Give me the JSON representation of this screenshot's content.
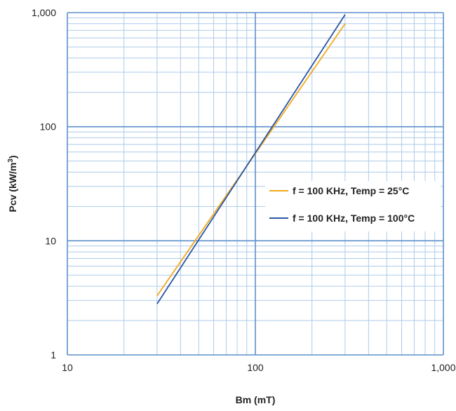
{
  "chart_data": {
    "type": "line",
    "title": "",
    "xlabel": "Bm (mT)",
    "ylabel_main": "Pcv (kW/m",
    "ylabel_sup": "3",
    "ylabel_close": ")",
    "x_scale": "log",
    "y_scale": "log",
    "xlim": [
      10,
      1000
    ],
    "ylim": [
      1,
      1000
    ],
    "x_ticks": [
      {
        "value": 10,
        "label": "10"
      },
      {
        "value": 100,
        "label": "100"
      },
      {
        "value": 1000,
        "label": "1,000"
      }
    ],
    "y_ticks": [
      {
        "value": 1,
        "label": "1"
      },
      {
        "value": 10,
        "label": "10"
      },
      {
        "value": 100,
        "label": "100"
      },
      {
        "value": 1000,
        "label": "1,000"
      }
    ],
    "grid": true,
    "legend_position": "center-right",
    "series": [
      {
        "name": "f = 100 KHz, Temp = 25°C",
        "color": "#F0AA1E",
        "x": [
          30,
          300
        ],
        "y": [
          3.3,
          800
        ]
      },
      {
        "name": "f = 100 KHz, Temp = 100°C",
        "color": "#2A56A4",
        "x": [
          30,
          300
        ],
        "y": [
          2.8,
          960
        ]
      }
    ],
    "colors": {
      "grid_major": "#5B8FCB",
      "grid_minor": "#AECBEA"
    }
  }
}
